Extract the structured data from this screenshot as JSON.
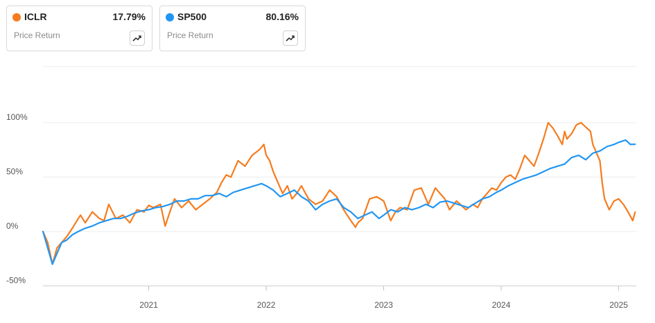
{
  "legend": [
    {
      "ticker": "ICLR",
      "value": "17.79%",
      "subtitle": "Price Return",
      "color": "#f57c1f",
      "icon": "trend-chart-icon"
    },
    {
      "ticker": "SP500",
      "value": "80.16%",
      "subtitle": "Price Return",
      "color": "#2196f3",
      "icon": "trend-chart-icon"
    }
  ],
  "chart_data": {
    "type": "line",
    "title": "",
    "xlabel": "",
    "ylabel": "",
    "x_range": [
      2020.1,
      2025.15
    ],
    "ylim": [
      -50,
      110
    ],
    "y_ticks": [
      100,
      50,
      0,
      -50
    ],
    "y_tick_labels": [
      "100%",
      "50%",
      "0%",
      "-50%"
    ],
    "x_ticks": [
      2021,
      2022,
      2023,
      2024,
      2025
    ],
    "x_tick_labels": [
      "2021",
      "2022",
      "2023",
      "2024",
      "2025"
    ],
    "grid": true,
    "series": [
      {
        "name": "ICLR",
        "color": "#f57c1f",
        "x": [
          2020.1,
          2020.14,
          2020.18,
          2020.22,
          2020.26,
          2020.3,
          2020.35,
          2020.4,
          2020.42,
          2020.46,
          2020.52,
          2020.58,
          2020.62,
          2020.66,
          2020.72,
          2020.78,
          2020.84,
          2020.9,
          2020.96,
          2021.0,
          2021.04,
          2021.1,
          2021.14,
          2021.18,
          2021.22,
          2021.28,
          2021.34,
          2021.4,
          2021.46,
          2021.52,
          2021.58,
          2021.62,
          2021.66,
          2021.7,
          2021.76,
          2021.82,
          2021.88,
          2021.94,
          2021.98,
          2022.0,
          2022.03,
          2022.06,
          2022.1,
          2022.14,
          2022.18,
          2022.22,
          2022.26,
          2022.3,
          2022.36,
          2022.42,
          2022.48,
          2022.54,
          2022.6,
          2022.66,
          2022.72,
          2022.76,
          2022.78,
          2022.82,
          2022.88,
          2022.94,
          2023.0,
          2023.06,
          2023.1,
          2023.14,
          2023.2,
          2023.26,
          2023.32,
          2023.38,
          2023.44,
          2023.48,
          2023.52,
          2023.56,
          2023.62,
          2023.7,
          2023.76,
          2023.8,
          2023.84,
          2023.88,
          2023.92,
          2023.96,
          2024.0,
          2024.04,
          2024.08,
          2024.12,
          2024.16,
          2024.2,
          2024.24,
          2024.28,
          2024.32,
          2024.36,
          2024.4,
          2024.44,
          2024.48,
          2024.52,
          2024.54,
          2024.56,
          2024.6,
          2024.64,
          2024.68,
          2024.72,
          2024.76,
          2024.78,
          2024.8,
          2024.82,
          2024.84,
          2024.86,
          2024.88,
          2024.92,
          2024.96,
          2025.0,
          2025.04,
          2025.08,
          2025.12,
          2025.14
        ],
        "values": [
          0,
          -10,
          -30,
          -15,
          -10,
          -5,
          3,
          12,
          15,
          8,
          18,
          12,
          10,
          25,
          12,
          15,
          8,
          20,
          18,
          24,
          22,
          25,
          5,
          18,
          30,
          22,
          28,
          20,
          25,
          30,
          36,
          45,
          52,
          50,
          65,
          60,
          70,
          75,
          80,
          70,
          65,
          55,
          45,
          35,
          42,
          30,
          35,
          42,
          30,
          25,
          28,
          38,
          32,
          20,
          10,
          4,
          8,
          12,
          30,
          32,
          28,
          10,
          18,
          22,
          20,
          38,
          40,
          25,
          40,
          35,
          30,
          20,
          28,
          20,
          25,
          22,
          30,
          35,
          40,
          38,
          45,
          50,
          52,
          48,
          58,
          70,
          65,
          60,
          72,
          85,
          100,
          95,
          88,
          80,
          92,
          85,
          90,
          98,
          100,
          96,
          92,
          80,
          75,
          70,
          65,
          45,
          30,
          20,
          28,
          30,
          25,
          18,
          10,
          17.79
        ]
      },
      {
        "name": "SP500",
        "color": "#2196f3",
        "x": [
          2020.1,
          2020.14,
          2020.18,
          2020.22,
          2020.26,
          2020.3,
          2020.35,
          2020.4,
          2020.46,
          2020.52,
          2020.58,
          2020.64,
          2020.7,
          2020.76,
          2020.82,
          2020.88,
          2020.94,
          2021.0,
          2021.06,
          2021.12,
          2021.18,
          2021.24,
          2021.3,
          2021.36,
          2021.42,
          2021.48,
          2021.54,
          2021.6,
          2021.66,
          2021.72,
          2021.78,
          2021.84,
          2021.9,
          2021.96,
          2022.0,
          2022.06,
          2022.12,
          2022.18,
          2022.24,
          2022.3,
          2022.36,
          2022.42,
          2022.48,
          2022.54,
          2022.6,
          2022.66,
          2022.72,
          2022.78,
          2022.84,
          2022.9,
          2022.96,
          2023.0,
          2023.06,
          2023.12,
          2023.18,
          2023.24,
          2023.3,
          2023.36,
          2023.42,
          2023.48,
          2023.54,
          2023.6,
          2023.66,
          2023.72,
          2023.78,
          2023.84,
          2023.9,
          2023.96,
          2024.0,
          2024.06,
          2024.12,
          2024.18,
          2024.24,
          2024.3,
          2024.36,
          2024.42,
          2024.48,
          2024.54,
          2024.6,
          2024.66,
          2024.72,
          2024.78,
          2024.84,
          2024.9,
          2024.96,
          2025.0,
          2025.06,
          2025.1,
          2025.14
        ],
        "values": [
          0,
          -15,
          -30,
          -20,
          -10,
          -8,
          -3,
          0,
          3,
          5,
          8,
          10,
          12,
          12,
          14,
          17,
          19,
          20,
          22,
          23,
          25,
          28,
          28,
          30,
          30,
          33,
          33,
          35,
          32,
          36,
          38,
          40,
          42,
          44,
          42,
          38,
          32,
          35,
          38,
          32,
          28,
          20,
          25,
          28,
          30,
          22,
          18,
          12,
          15,
          18,
          12,
          15,
          20,
          18,
          22,
          20,
          22,
          25,
          22,
          27,
          28,
          26,
          24,
          22,
          26,
          30,
          32,
          36,
          38,
          42,
          45,
          48,
          50,
          52,
          55,
          58,
          60,
          62,
          68,
          70,
          66,
          72,
          74,
          78,
          80,
          82,
          84,
          80,
          80.16
        ]
      }
    ]
  }
}
